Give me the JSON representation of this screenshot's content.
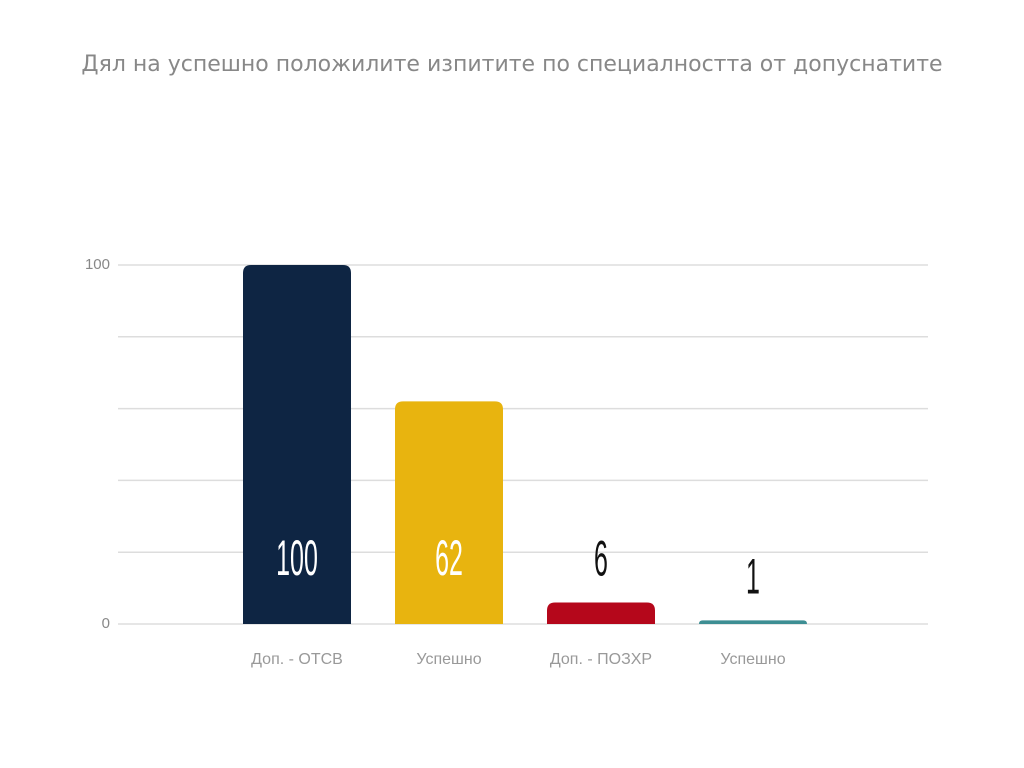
{
  "chart_data": {
    "type": "bar",
    "title": "Дял на успешно положилите изпитите по специалността от допуснатите",
    "categories": [
      "Доп. - ОТСВ",
      "Успешно",
      "Доп. - ПОЗХР",
      "Успешно"
    ],
    "values": [
      100,
      62,
      6,
      1
    ],
    "colors": [
      "#0e2543",
      "#e8b40f",
      "#b5071b",
      "#3d8e93"
    ],
    "ylim": [
      0,
      100
    ],
    "yticks": [
      0,
      {
        "value": 20,
        "label": null
      },
      {
        "value": 40,
        "label": null
      },
      {
        "value": 60,
        "label": null
      },
      {
        "value": 80,
        "label": null
      },
      100
    ],
    "grid": true
  }
}
